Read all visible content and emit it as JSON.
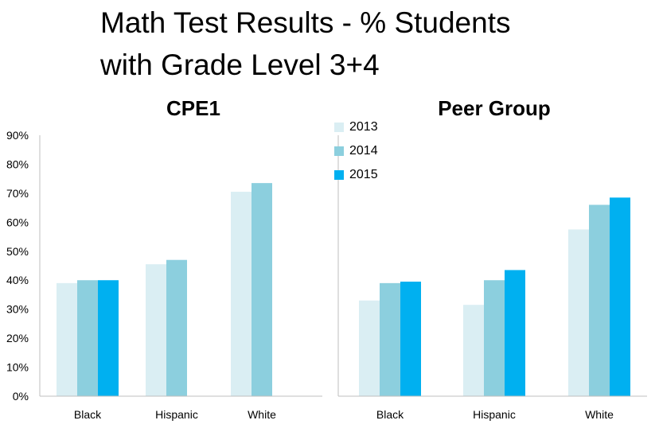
{
  "page": {
    "title_line1": "Math Test Results - % Students",
    "title_line2": "with Grade Level 3+4"
  },
  "legend": [
    {
      "label": "2013",
      "color": "#daeef3"
    },
    {
      "label": "2014",
      "color": "#8ccfde"
    },
    {
      "label": "2015",
      "color": "#00b0f0"
    }
  ],
  "chart_data": [
    {
      "type": "bar",
      "title": "CPE1",
      "categories": [
        "Black",
        "Hispanic",
        "White"
      ],
      "series": [
        {
          "name": "2013",
          "values": [
            39,
            45.5,
            70.5
          ]
        },
        {
          "name": "2014",
          "values": [
            40,
            47,
            73.5
          ]
        },
        {
          "name": "2015",
          "values": [
            40,
            null,
            null
          ]
        }
      ],
      "ylim": [
        0,
        90
      ],
      "yticks": [
        "0%",
        "10%",
        "20%",
        "30%",
        "40%",
        "50%",
        "60%",
        "70%",
        "80%",
        "90%"
      ],
      "grid": false
    },
    {
      "type": "bar",
      "title": "Peer Group",
      "categories": [
        "Black",
        "Hispanic",
        "White"
      ],
      "series": [
        {
          "name": "2013",
          "values": [
            33,
            31.5,
            57.5
          ]
        },
        {
          "name": "2014",
          "values": [
            39,
            40,
            66
          ]
        },
        {
          "name": "2015",
          "values": [
            39.5,
            43.5,
            68.5
          ]
        }
      ],
      "ylim": [
        0,
        90
      ],
      "grid": false
    }
  ]
}
